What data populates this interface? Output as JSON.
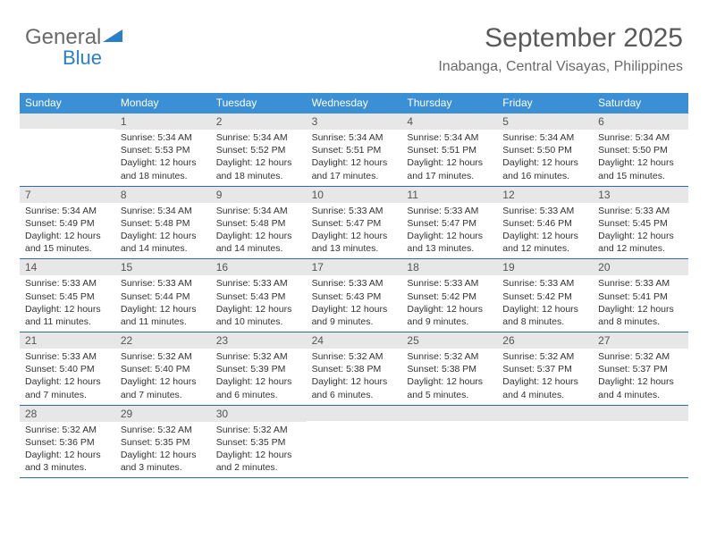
{
  "logo": {
    "text1": "General",
    "text2": "Blue"
  },
  "header": {
    "month": "September 2025",
    "location": "Inabanga, Central Visayas, Philippines"
  },
  "colors": {
    "header_bg": "#3b8fd4",
    "daynum_bg": "#e7e7e7",
    "week_border": "#2d6aa8",
    "logo_gray": "#6a6a6a",
    "logo_blue": "#2a7fc9"
  },
  "fonts": {
    "month_size_pt": 22,
    "location_size_pt": 12,
    "dayhdr_size_pt": 9,
    "daynum_size_pt": 9,
    "body_size_pt": 8
  },
  "day_names": [
    "Sunday",
    "Monday",
    "Tuesday",
    "Wednesday",
    "Thursday",
    "Friday",
    "Saturday"
  ],
  "weeks": [
    [
      null,
      {
        "n": "1",
        "sr": "5:34 AM",
        "ss": "5:53 PM",
        "dl": "12 hours and 18 minutes."
      },
      {
        "n": "2",
        "sr": "5:34 AM",
        "ss": "5:52 PM",
        "dl": "12 hours and 18 minutes."
      },
      {
        "n": "3",
        "sr": "5:34 AM",
        "ss": "5:51 PM",
        "dl": "12 hours and 17 minutes."
      },
      {
        "n": "4",
        "sr": "5:34 AM",
        "ss": "5:51 PM",
        "dl": "12 hours and 17 minutes."
      },
      {
        "n": "5",
        "sr": "5:34 AM",
        "ss": "5:50 PM",
        "dl": "12 hours and 16 minutes."
      },
      {
        "n": "6",
        "sr": "5:34 AM",
        "ss": "5:50 PM",
        "dl": "12 hours and 15 minutes."
      }
    ],
    [
      {
        "n": "7",
        "sr": "5:34 AM",
        "ss": "5:49 PM",
        "dl": "12 hours and 15 minutes."
      },
      {
        "n": "8",
        "sr": "5:34 AM",
        "ss": "5:48 PM",
        "dl": "12 hours and 14 minutes."
      },
      {
        "n": "9",
        "sr": "5:34 AM",
        "ss": "5:48 PM",
        "dl": "12 hours and 14 minutes."
      },
      {
        "n": "10",
        "sr": "5:33 AM",
        "ss": "5:47 PM",
        "dl": "12 hours and 13 minutes."
      },
      {
        "n": "11",
        "sr": "5:33 AM",
        "ss": "5:47 PM",
        "dl": "12 hours and 13 minutes."
      },
      {
        "n": "12",
        "sr": "5:33 AM",
        "ss": "5:46 PM",
        "dl": "12 hours and 12 minutes."
      },
      {
        "n": "13",
        "sr": "5:33 AM",
        "ss": "5:45 PM",
        "dl": "12 hours and 12 minutes."
      }
    ],
    [
      {
        "n": "14",
        "sr": "5:33 AM",
        "ss": "5:45 PM",
        "dl": "12 hours and 11 minutes."
      },
      {
        "n": "15",
        "sr": "5:33 AM",
        "ss": "5:44 PM",
        "dl": "12 hours and 11 minutes."
      },
      {
        "n": "16",
        "sr": "5:33 AM",
        "ss": "5:43 PM",
        "dl": "12 hours and 10 minutes."
      },
      {
        "n": "17",
        "sr": "5:33 AM",
        "ss": "5:43 PM",
        "dl": "12 hours and 9 minutes."
      },
      {
        "n": "18",
        "sr": "5:33 AM",
        "ss": "5:42 PM",
        "dl": "12 hours and 9 minutes."
      },
      {
        "n": "19",
        "sr": "5:33 AM",
        "ss": "5:42 PM",
        "dl": "12 hours and 8 minutes."
      },
      {
        "n": "20",
        "sr": "5:33 AM",
        "ss": "5:41 PM",
        "dl": "12 hours and 8 minutes."
      }
    ],
    [
      {
        "n": "21",
        "sr": "5:33 AM",
        "ss": "5:40 PM",
        "dl": "12 hours and 7 minutes."
      },
      {
        "n": "22",
        "sr": "5:32 AM",
        "ss": "5:40 PM",
        "dl": "12 hours and 7 minutes."
      },
      {
        "n": "23",
        "sr": "5:32 AM",
        "ss": "5:39 PM",
        "dl": "12 hours and 6 minutes."
      },
      {
        "n": "24",
        "sr": "5:32 AM",
        "ss": "5:38 PM",
        "dl": "12 hours and 6 minutes."
      },
      {
        "n": "25",
        "sr": "5:32 AM",
        "ss": "5:38 PM",
        "dl": "12 hours and 5 minutes."
      },
      {
        "n": "26",
        "sr": "5:32 AM",
        "ss": "5:37 PM",
        "dl": "12 hours and 4 minutes."
      },
      {
        "n": "27",
        "sr": "5:32 AM",
        "ss": "5:37 PM",
        "dl": "12 hours and 4 minutes."
      }
    ],
    [
      {
        "n": "28",
        "sr": "5:32 AM",
        "ss": "5:36 PM",
        "dl": "12 hours and 3 minutes."
      },
      {
        "n": "29",
        "sr": "5:32 AM",
        "ss": "5:35 PM",
        "dl": "12 hours and 3 minutes."
      },
      {
        "n": "30",
        "sr": "5:32 AM",
        "ss": "5:35 PM",
        "dl": "12 hours and 2 minutes."
      },
      null,
      null,
      null,
      null
    ]
  ],
  "labels": {
    "sunrise": "Sunrise:",
    "sunset": "Sunset:",
    "daylight": "Daylight:"
  }
}
